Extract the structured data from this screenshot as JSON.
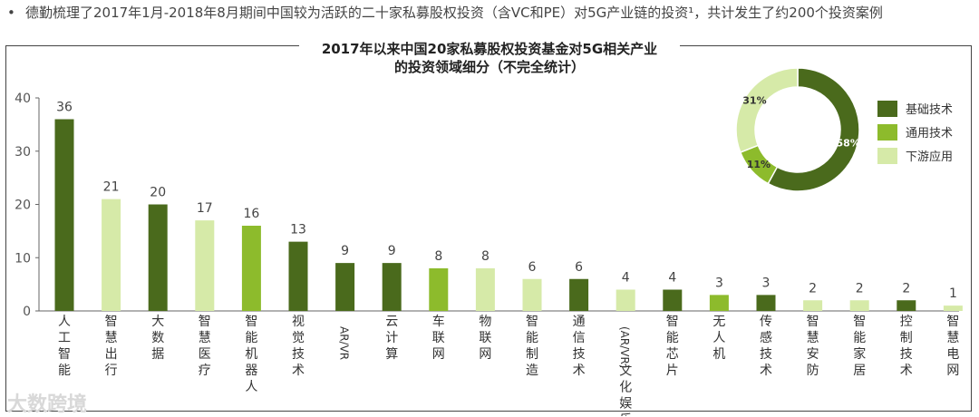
{
  "intro": {
    "bullet": "•",
    "text": "德勤梳理了2017年1月-2018年8月期间中国较为活跃的二十家私募股权投资（含VC和PE）对5G产业链的投资¹，共计发生了约200个投资案例"
  },
  "chart_data": {
    "type": "bar",
    "title_line1": "2017年以来中国20家私募股权投资基金对5G相关产业",
    "title_line2": "的投资领域细分（不完全统计）",
    "ylim": [
      0,
      40
    ],
    "yticks": [
      "0",
      "10",
      "20",
      "30",
      "40"
    ],
    "categories": [
      "人工智能",
      "智慧出行",
      "大数据",
      "智慧医疗",
      "智能机器人",
      "视觉技术",
      "AR/VR",
      "云计算",
      "车联网",
      "物联网",
      "智能制造",
      "通信技术",
      "文化娱乐(AR/VR)",
      "智能芯片",
      "无人机",
      "传感技术",
      "智慧安防",
      "智能家居",
      "控制技术",
      "智慧电网"
    ],
    "category_labels": [
      [
        "人",
        "工",
        "智",
        "能"
      ],
      [
        "智",
        "慧",
        "出",
        "行"
      ],
      [
        "大",
        "数",
        "据"
      ],
      [
        "智",
        "慧",
        "医",
        "疗"
      ],
      [
        "智",
        "能",
        "机",
        "器",
        "人"
      ],
      [
        "视",
        "觉",
        "技",
        "术"
      ],
      [
        "AR/VR"
      ],
      [
        "云",
        "计",
        "算"
      ],
      [
        "车",
        "联",
        "网"
      ],
      [
        "物",
        "联",
        "网"
      ],
      [
        "智",
        "能",
        "制",
        "造"
      ],
      [
        "通",
        "信",
        "技",
        "术"
      ],
      [
        "(AR/VR)",
        "文",
        "化",
        "娱",
        "乐"
      ],
      [
        "智",
        "能",
        "芯",
        "片"
      ],
      [
        "无",
        "人",
        "机"
      ],
      [
        "传",
        "感",
        "技",
        "术"
      ],
      [
        "智",
        "慧",
        "安",
        "防"
      ],
      [
        "智",
        "能",
        "家",
        "居"
      ],
      [
        "控",
        "制",
        "技",
        "术"
      ],
      [
        "智",
        "慧",
        "电",
        "网"
      ]
    ],
    "values": [
      36,
      21,
      20,
      17,
      16,
      13,
      9,
      9,
      8,
      8,
      6,
      6,
      4,
      4,
      3,
      3,
      2,
      2,
      2,
      1
    ],
    "groups": [
      "基础技术",
      "下游应用",
      "基础技术",
      "下游应用",
      "通用技术",
      "基础技术",
      "基础技术",
      "基础技术",
      "通用技术",
      "下游应用",
      "下游应用",
      "基础技术",
      "下游应用",
      "基础技术",
      "通用技术",
      "基础技术",
      "下游应用",
      "下游应用",
      "基础技术",
      "下游应用"
    ],
    "colors": {
      "基础技术": "#4a6a1c",
      "通用技术": "#8dbb2c",
      "下游应用": "#d6eaa8"
    },
    "legend": [
      "基础技术",
      "通用技术",
      "下游应用"
    ],
    "pie": {
      "type": "pie",
      "slices": [
        {
          "name": "基础技术",
          "value": 58,
          "label": "58%"
        },
        {
          "name": "通用技术",
          "value": 11,
          "label": "11%"
        },
        {
          "name": "下游应用",
          "value": 31,
          "label": "31%"
        }
      ]
    }
  },
  "watermark": "大数跨境"
}
